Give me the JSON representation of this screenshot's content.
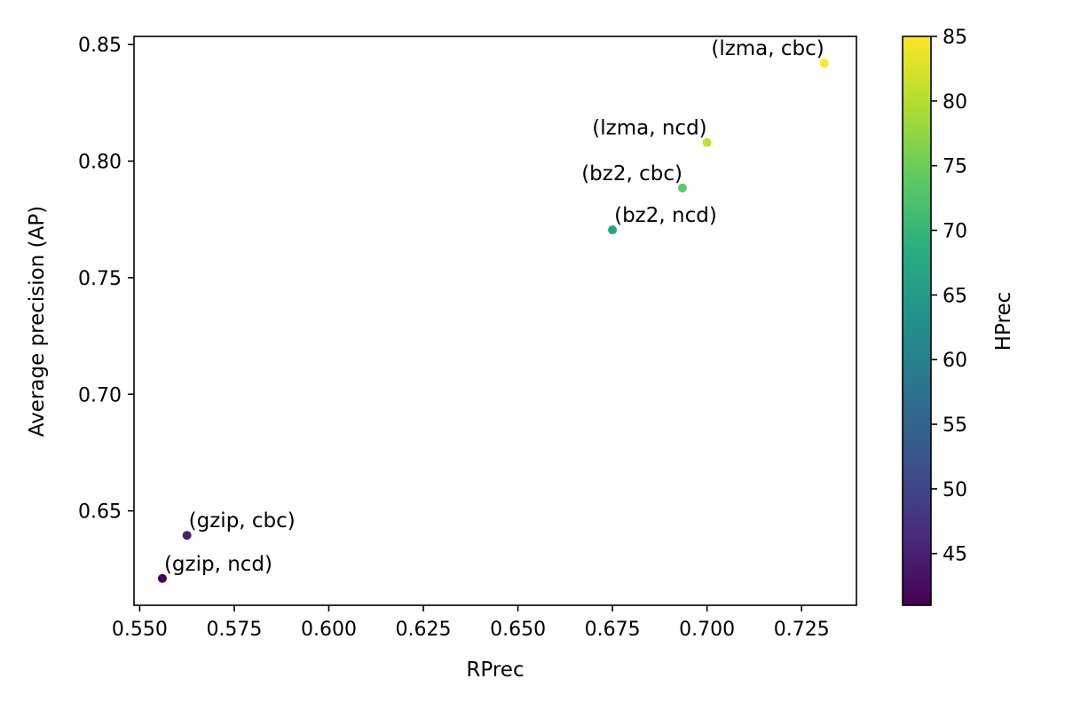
{
  "chart_data": {
    "type": "scatter",
    "xlabel": "RPrec",
    "ylabel": "Average precision (AP)",
    "xlim": [
      0.5485,
      0.7395
    ],
    "ylim": [
      0.6095,
      0.8535
    ],
    "xticks": [
      0.55,
      0.575,
      0.6,
      0.625,
      0.65,
      0.675,
      0.7,
      0.725
    ],
    "xtick_labels": [
      "0.550",
      "0.575",
      "0.600",
      "0.625",
      "0.650",
      "0.675",
      "0.700",
      "0.725"
    ],
    "yticks": [
      0.65,
      0.7,
      0.75,
      0.8,
      0.85
    ],
    "ytick_labels": [
      "0.65",
      "0.70",
      "0.75",
      "0.80",
      "0.85"
    ],
    "color": {
      "label": "HPrec",
      "colormap": "viridis",
      "range": [
        41,
        85
      ],
      "ticks": [
        45,
        50,
        55,
        60,
        65,
        70,
        75,
        80,
        85
      ],
      "tick_labels": [
        "45",
        "50",
        "55",
        "60",
        "65",
        "70",
        "75",
        "80",
        "85"
      ]
    },
    "points": [
      {
        "label": "(gzip, ncd)",
        "x": 0.556,
        "y": 0.621,
        "hprec": 41
      },
      {
        "label": "(gzip, cbc)",
        "x": 0.5625,
        "y": 0.6395,
        "hprec": 45
      },
      {
        "label": "(bz2, ncd)",
        "x": 0.675,
        "y": 0.7705,
        "hprec": 67
      },
      {
        "label": "(bz2, cbc)",
        "x": 0.6935,
        "y": 0.7885,
        "hprec": 74
      },
      {
        "label": "(lzma, ncd)",
        "x": 0.7,
        "y": 0.808,
        "hprec": 81
      },
      {
        "label": "(lzma, cbc)",
        "x": 0.731,
        "y": 0.842,
        "hprec": 85
      }
    ]
  }
}
